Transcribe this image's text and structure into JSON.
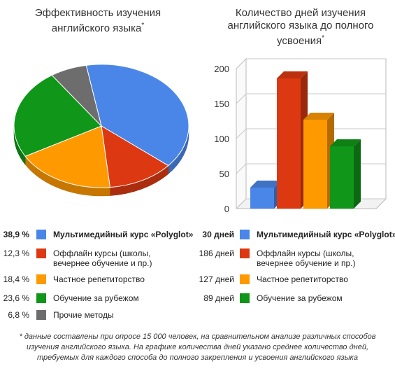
{
  "pie_title": "Эффективность изучения английского языка",
  "pie_title_mark": "*",
  "bar_title": "Количество дней изучения английского языка до полного усвоения",
  "bar_title_mark": "*",
  "footnote": "* данные составлены при опросе 15 000 человек, на сравнительном анализе различных способов изучения английского языка. На графике количества дней указано среднее количество дней, требуемых для каждого способа до полного закрепления и усвоения английского языка",
  "pie_legend": [
    {
      "value": "38,9 %",
      "label": "Мультимедийный курс «Polyglot»",
      "bold": true
    },
    {
      "value": "12,3 %",
      "label": "Оффлайн курсы (школы,\nвечернее обучение и пр.)",
      "bold": false
    },
    {
      "value": "18,4 %",
      "label": "Частное репетиторство",
      "bold": false
    },
    {
      "value": "23,6 %",
      "label": "Обучение за рубежом",
      "bold": false
    },
    {
      "value": "6,8 %",
      "label": "Прочие методы",
      "bold": false
    }
  ],
  "bar_legend": [
    {
      "value": "30 дней",
      "label": "Мультимедийный курс «Polyglot»",
      "bold": true
    },
    {
      "value": "186 дней",
      "label": "Оффлайн курсы (школы,\nвечернее обучение и пр.)",
      "bold": false
    },
    {
      "value": "127 дней",
      "label": "Частное репетиторство",
      "bold": false
    },
    {
      "value": "89 дней",
      "label": "Обучение за рубежом",
      "bold": false
    }
  ],
  "chart_data": [
    {
      "type": "pie",
      "title": "Эффективность изучения английского языка",
      "categories": [
        "Мультимедийный курс «Polyglot»",
        "Оффлайн курсы (школы, вечернее обучение и пр.)",
        "Частное репетиторство",
        "Обучение за рубежом",
        "Прочие методы"
      ],
      "values": [
        38.9,
        12.3,
        18.4,
        23.6,
        6.8
      ],
      "colors": [
        "#4a86e8",
        "#dc3912",
        "#ff9900",
        "#109618",
        "#6d6d6d"
      ],
      "style": "3d"
    },
    {
      "type": "bar",
      "title": "Количество дней изучения английского языка до полного усвоения",
      "categories": [
        "Мультимедийный курс «Polyglot»",
        "Оффлайн курсы (школы, вечернее обучение и пр.)",
        "Частное репетиторство",
        "Обучение за рубежом"
      ],
      "values": [
        30,
        186,
        127,
        89
      ],
      "colors": [
        "#4a86e8",
        "#dc3912",
        "#ff9900",
        "#109618"
      ],
      "ylim": [
        0,
        200
      ],
      "yticks": [
        0,
        50,
        100,
        150,
        200
      ],
      "grid": true,
      "style": "3d"
    }
  ]
}
